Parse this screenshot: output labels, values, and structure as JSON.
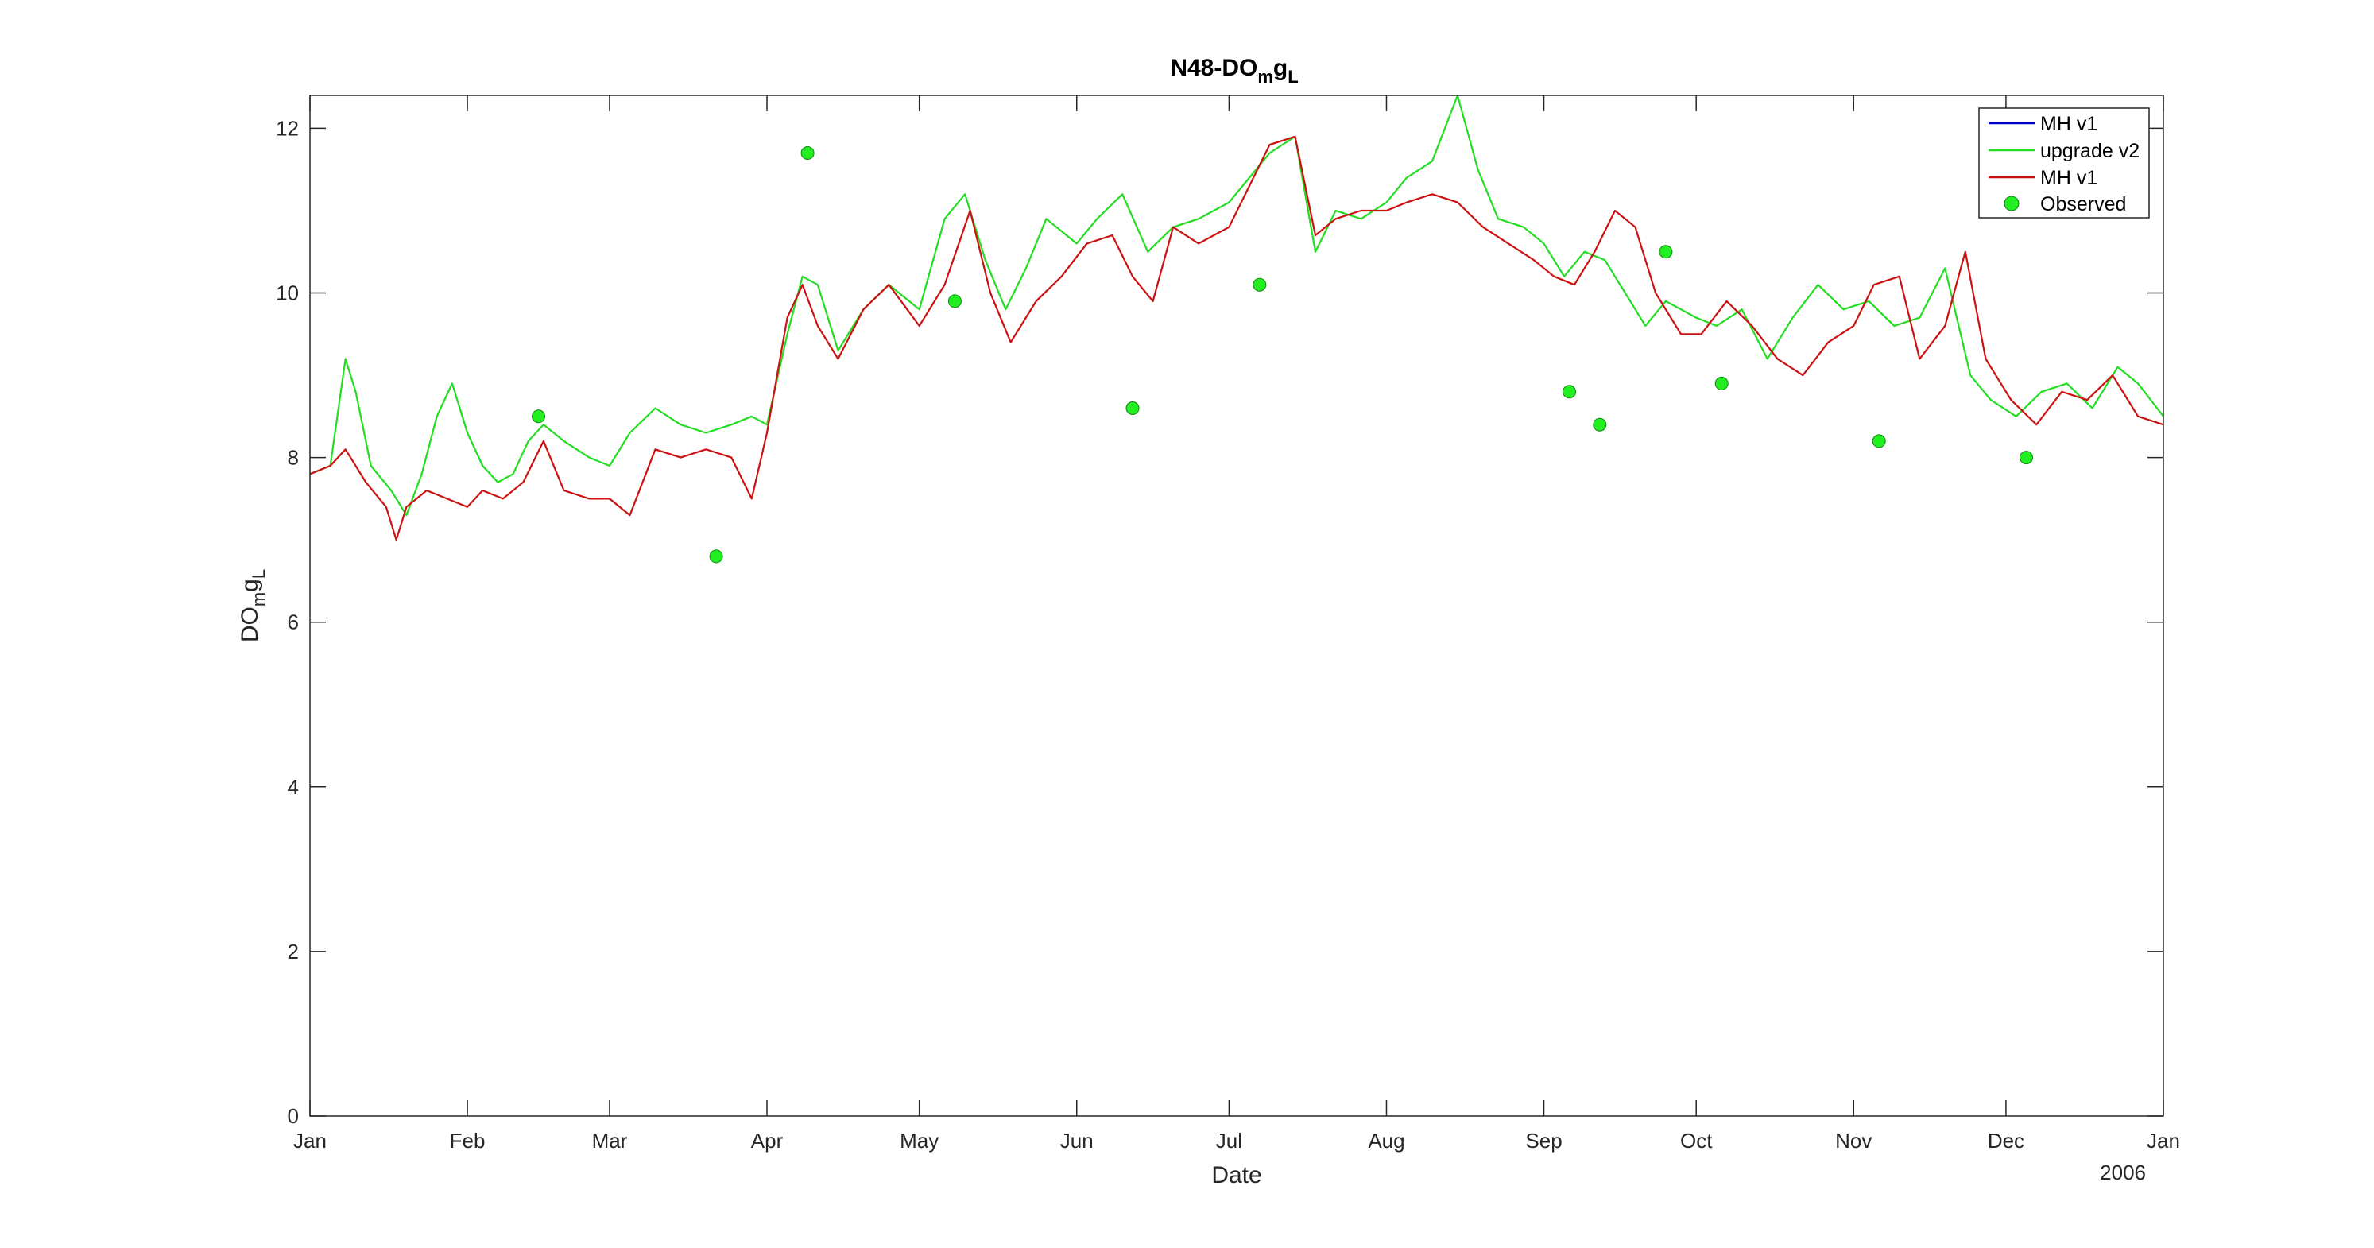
{
  "chart_data": {
    "type": "line",
    "title": "N48-DO_m g_L",
    "title_parts": {
      "main": "N48-DO",
      "sub1": "m",
      "mid": "g",
      "sub2": "L"
    },
    "xlabel": "Date",
    "ylabel_parts": {
      "main": "DO",
      "sub1": "m",
      "mid": "g",
      "sub2": "L"
    },
    "year_label": "2006",
    "xlim": [
      "2005-01-01",
      "2006-01-01"
    ],
    "ylim": [
      0,
      12.4
    ],
    "x_ticks": [
      {
        "label": "Jan",
        "date": "2005-01-01"
      },
      {
        "label": "Feb",
        "date": "2005-02-01"
      },
      {
        "label": "Mar",
        "date": "2005-03-01"
      },
      {
        "label": "Apr",
        "date": "2005-04-01"
      },
      {
        "label": "May",
        "date": "2005-05-01"
      },
      {
        "label": "Jun",
        "date": "2005-06-01"
      },
      {
        "label": "Jul",
        "date": "2005-07-01"
      },
      {
        "label": "Aug",
        "date": "2005-08-01"
      },
      {
        "label": "Sep",
        "date": "2005-09-01"
      },
      {
        "label": "Oct",
        "date": "2005-10-01"
      },
      {
        "label": "Nov",
        "date": "2005-11-01"
      },
      {
        "label": "Dec",
        "date": "2005-12-01"
      },
      {
        "label": "Jan",
        "date": "2006-01-01"
      }
    ],
    "y_ticks": [
      0,
      2,
      4,
      6,
      8,
      10,
      12
    ],
    "grid": false,
    "legend_position": "top-right",
    "series": [
      {
        "name": "MH v1",
        "color": "#0000cc",
        "kind": "line",
        "values": []
      },
      {
        "name": "upgrade v2",
        "color": "#22dd22",
        "kind": "line",
        "x": [
          "2005-01-01",
          "2005-01-05",
          "2005-01-08",
          "2005-01-10",
          "2005-01-13",
          "2005-01-17",
          "2005-01-20",
          "2005-01-23",
          "2005-01-26",
          "2005-01-29",
          "2005-02-01",
          "2005-02-04",
          "2005-02-07",
          "2005-02-10",
          "2005-02-13",
          "2005-02-16",
          "2005-02-20",
          "2005-02-25",
          "2005-03-01",
          "2005-03-05",
          "2005-03-10",
          "2005-03-15",
          "2005-03-20",
          "2005-03-25",
          "2005-03-29",
          "2005-04-01",
          "2005-04-05",
          "2005-04-08",
          "2005-04-11",
          "2005-04-15",
          "2005-04-20",
          "2005-04-25",
          "2005-05-01",
          "2005-05-06",
          "2005-05-10",
          "2005-05-14",
          "2005-05-18",
          "2005-05-22",
          "2005-05-26",
          "2005-06-01",
          "2005-06-05",
          "2005-06-10",
          "2005-06-15",
          "2005-06-20",
          "2005-06-25",
          "2005-07-01",
          "2005-07-05",
          "2005-07-09",
          "2005-07-14",
          "2005-07-18",
          "2005-07-22",
          "2005-07-27",
          "2005-08-01",
          "2005-08-05",
          "2005-08-10",
          "2005-08-15",
          "2005-08-19",
          "2005-08-23",
          "2005-08-28",
          "2005-09-01",
          "2005-09-05",
          "2005-09-09",
          "2005-09-13",
          "2005-09-17",
          "2005-09-21",
          "2005-09-25",
          "2005-10-01",
          "2005-10-05",
          "2005-10-10",
          "2005-10-15",
          "2005-10-20",
          "2005-10-25",
          "2005-10-30",
          "2005-11-04",
          "2005-11-09",
          "2005-11-14",
          "2005-11-19",
          "2005-11-24",
          "2005-11-28",
          "2005-12-03",
          "2005-12-08",
          "2005-12-13",
          "2005-12-18",
          "2005-12-23",
          "2005-12-27",
          "2006-01-01"
        ],
        "values": [
          7.8,
          7.9,
          9.2,
          8.8,
          7.9,
          7.6,
          7.3,
          7.8,
          8.5,
          8.9,
          8.3,
          7.9,
          7.7,
          7.8,
          8.2,
          8.4,
          8.2,
          8.0,
          7.9,
          8.3,
          8.6,
          8.4,
          8.3,
          8.4,
          8.5,
          8.4,
          9.5,
          10.2,
          10.1,
          9.3,
          9.8,
          10.1,
          9.8,
          10.9,
          11.2,
          10.4,
          9.8,
          10.3,
          10.9,
          10.6,
          10.9,
          11.2,
          10.5,
          10.8,
          10.9,
          11.1,
          11.4,
          11.7,
          11.9,
          10.5,
          11.0,
          10.9,
          11.1,
          11.4,
          11.6,
          12.4,
          11.5,
          10.9,
          10.8,
          10.6,
          10.2,
          10.5,
          10.4,
          10.0,
          9.6,
          9.9,
          9.7,
          9.6,
          9.8,
          9.2,
          9.7,
          10.1,
          9.8,
          9.9,
          9.6,
          9.7,
          10.3,
          9.0,
          8.7,
          8.5,
          8.8,
          8.9,
          8.6,
          9.1,
          8.9,
          8.5
        ]
      },
      {
        "name": "MH v1",
        "color": "#cc1111",
        "kind": "line",
        "x": [
          "2005-01-01",
          "2005-01-05",
          "2005-01-08",
          "2005-01-12",
          "2005-01-16",
          "2005-01-18",
          "2005-01-20",
          "2005-01-24",
          "2005-01-28",
          "2005-02-01",
          "2005-02-04",
          "2005-02-08",
          "2005-02-12",
          "2005-02-16",
          "2005-02-20",
          "2005-02-25",
          "2005-03-01",
          "2005-03-05",
          "2005-03-10",
          "2005-03-15",
          "2005-03-20",
          "2005-03-25",
          "2005-03-29",
          "2005-04-01",
          "2005-04-05",
          "2005-04-08",
          "2005-04-11",
          "2005-04-15",
          "2005-04-20",
          "2005-04-25",
          "2005-05-01",
          "2005-05-06",
          "2005-05-11",
          "2005-05-15",
          "2005-05-19",
          "2005-05-24",
          "2005-05-29",
          "2005-06-03",
          "2005-06-08",
          "2005-06-12",
          "2005-06-16",
          "2005-06-20",
          "2005-06-25",
          "2005-07-01",
          "2005-07-05",
          "2005-07-09",
          "2005-07-14",
          "2005-07-18",
          "2005-07-22",
          "2005-07-27",
          "2005-08-01",
          "2005-08-05",
          "2005-08-10",
          "2005-08-15",
          "2005-08-20",
          "2005-08-25",
          "2005-08-30",
          "2005-09-03",
          "2005-09-07",
          "2005-09-11",
          "2005-09-15",
          "2005-09-19",
          "2005-09-23",
          "2005-09-28",
          "2005-10-02",
          "2005-10-07",
          "2005-10-12",
          "2005-10-17",
          "2005-10-22",
          "2005-10-27",
          "2005-11-01",
          "2005-11-05",
          "2005-11-10",
          "2005-11-14",
          "2005-11-19",
          "2005-11-23",
          "2005-11-27",
          "2005-12-02",
          "2005-12-07",
          "2005-12-12",
          "2005-12-17",
          "2005-12-22",
          "2005-12-27",
          "2006-01-01"
        ],
        "values": [
          7.8,
          7.9,
          8.1,
          7.7,
          7.4,
          7.0,
          7.4,
          7.6,
          7.5,
          7.4,
          7.6,
          7.5,
          7.7,
          8.2,
          7.6,
          7.5,
          7.5,
          7.3,
          8.1,
          8.0,
          8.1,
          8.0,
          7.5,
          8.3,
          9.7,
          10.1,
          9.6,
          9.2,
          9.8,
          10.1,
          9.6,
          10.1,
          11.0,
          10.0,
          9.4,
          9.9,
          10.2,
          10.6,
          10.7,
          10.2,
          9.9,
          10.8,
          10.6,
          10.8,
          11.3,
          11.8,
          11.9,
          10.7,
          10.9,
          11.0,
          11.0,
          11.1,
          11.2,
          11.1,
          10.8,
          10.6,
          10.4,
          10.2,
          10.1,
          10.5,
          11.0,
          10.8,
          10.0,
          9.5,
          9.5,
          9.9,
          9.6,
          9.2,
          9.0,
          9.4,
          9.6,
          10.1,
          10.2,
          9.2,
          9.6,
          10.5,
          9.2,
          8.7,
          8.4,
          8.8,
          8.7,
          9.0,
          8.5,
          8.4
        ]
      },
      {
        "name": "Observed",
        "color": "#22ee22",
        "kind": "scatter",
        "x": [
          "2005-02-15",
          "2005-03-22",
          "2005-04-09",
          "2005-05-08",
          "2005-06-12",
          "2005-07-07",
          "2005-09-06",
          "2005-09-12",
          "2005-09-25",
          "2005-10-06",
          "2005-11-06",
          "2005-12-05"
        ],
        "values": [
          8.5,
          6.8,
          11.7,
          9.9,
          8.6,
          10.1,
          8.8,
          8.4,
          10.5,
          8.9,
          8.2,
          8.0
        ]
      }
    ]
  }
}
